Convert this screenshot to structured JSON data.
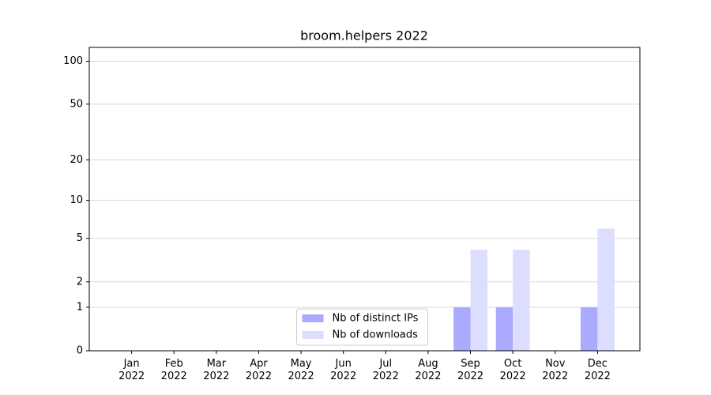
{
  "chart_data": {
    "type": "bar",
    "title": "broom.helpers 2022",
    "categories": [
      "Jan\n2022",
      "Feb\n2022",
      "Mar\n2022",
      "Apr\n2022",
      "May\n2022",
      "Jun\n2022",
      "Jul\n2022",
      "Aug\n2022",
      "Sep\n2022",
      "Oct\n2022",
      "Nov\n2022",
      "Dec\n2022"
    ],
    "series": [
      {
        "name": "Nb of distinct IPs",
        "color": "#aaaaff",
        "values": [
          0,
          0,
          0,
          0,
          0,
          0,
          0,
          0,
          1,
          1,
          0,
          1
        ]
      },
      {
        "name": "Nb of downloads",
        "color": "#ddddff",
        "values": [
          0,
          0,
          0,
          0,
          0,
          0,
          0,
          0,
          4,
          4,
          0,
          6
        ]
      }
    ],
    "yscale": "log1p",
    "ylim": [
      0,
      125
    ],
    "yticks": [
      0,
      1,
      2,
      5,
      10,
      20,
      50,
      100
    ],
    "grid": true,
    "legend": "lower center"
  }
}
